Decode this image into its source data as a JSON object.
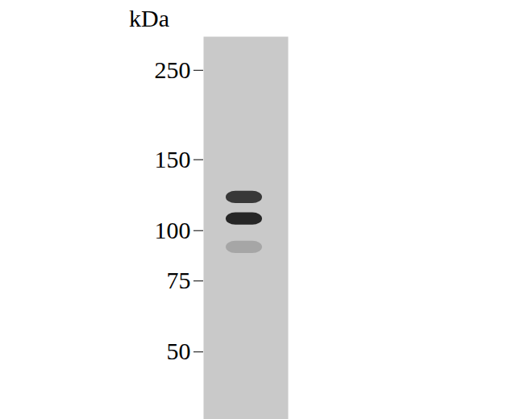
{
  "chart_data": {
    "type": "western_blot",
    "y_label": "kDa",
    "ylim": [
      34,
      303
    ],
    "yticks": [
      50,
      75,
      100,
      150,
      250
    ],
    "log": "y",
    "tick_labels": "y",
    "color": "#1e1e1e",
    "bands": [
      {
        "kDa": 121,
        "intensity": 0.85
      },
      {
        "kDa": 107,
        "intensity": 0.95
      },
      {
        "kDa": 91,
        "intensity": 0.2
      }
    ]
  }
}
